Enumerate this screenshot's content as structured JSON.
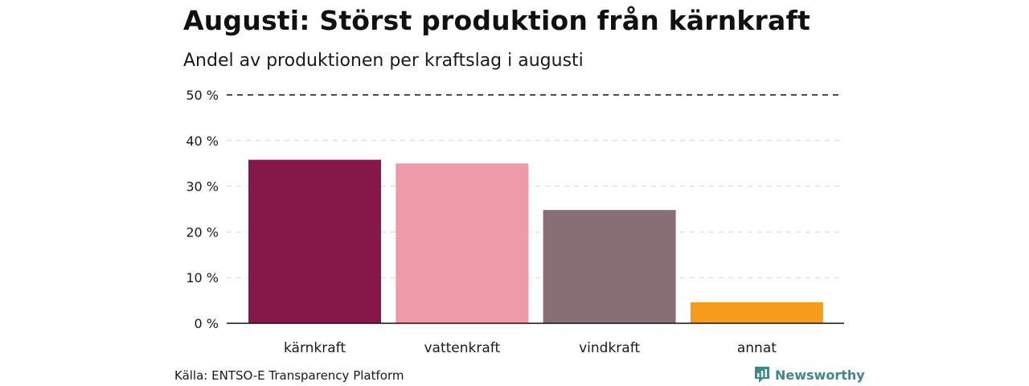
{
  "header": {
    "title": "Augusti: Störst produktion från kärnkraft",
    "subtitle": "Andel av produktionen per kraftslag i augusti"
  },
  "footer": {
    "source": "Källa: ENTSO-E Transparency Platform",
    "brand": "Newsworthy"
  },
  "colors": {
    "karnkraft": "#861749",
    "vattenkraft": "#ee9aa8",
    "vindkraft": "#8a6e75",
    "annat": "#f59d1b",
    "brand": "#3d8a86"
  },
  "icons": {
    "brand_logo": "newsworthy-logo-icon"
  },
  "chart_data": {
    "type": "bar",
    "categories": [
      "kärnkraft",
      "vattenkraft",
      "vindkraft",
      "annat"
    ],
    "values": [
      35.8,
      35.0,
      24.8,
      4.6
    ],
    "ylim": [
      0,
      50
    ],
    "yticks": [
      0,
      10,
      20,
      30,
      40,
      50
    ],
    "ytick_labels": [
      "0 %",
      "10 %",
      "20 %",
      "30 %",
      "40 %",
      "50 %"
    ],
    "grid": true,
    "bar_colors": [
      "#861749",
      "#ee9aa8",
      "#8a6e75",
      "#f59d1b"
    ]
  }
}
